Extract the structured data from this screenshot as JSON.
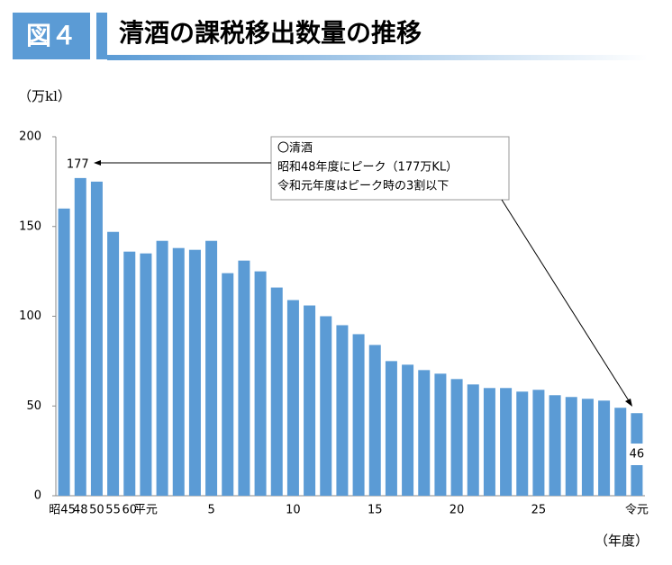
{
  "header": {
    "figure": "図４",
    "title": "清酒の課税移出数量の推移"
  },
  "chart_data": {
    "type": "bar",
    "y_label": "（万kl）",
    "x_label": "（年度）",
    "categories": [
      "昭45",
      "48",
      "50",
      "55",
      "60",
      "平元",
      null,
      null,
      null,
      "5",
      null,
      null,
      null,
      null,
      "10",
      null,
      null,
      null,
      null,
      "15",
      null,
      null,
      null,
      null,
      "20",
      null,
      null,
      null,
      null,
      "25",
      null,
      null,
      null,
      null,
      null,
      "令元"
    ],
    "values": [
      160,
      177,
      175,
      147,
      136,
      135,
      142,
      138,
      137,
      142,
      124,
      131,
      125,
      116,
      109,
      106,
      100,
      95,
      90,
      84,
      75,
      73,
      70,
      68,
      65,
      62,
      60,
      60,
      58,
      59,
      56,
      55,
      54,
      53,
      49,
      46
    ],
    "color": "#5b9bd5",
    "ylim": [
      0,
      200
    ],
    "yticks": [
      0,
      50,
      100,
      150,
      200
    ],
    "grid": false,
    "annotation": [
      "〇清酒",
      "昭和48年度にピーク（177万KL）",
      "令和元年度はピーク時の3割以下"
    ]
  }
}
